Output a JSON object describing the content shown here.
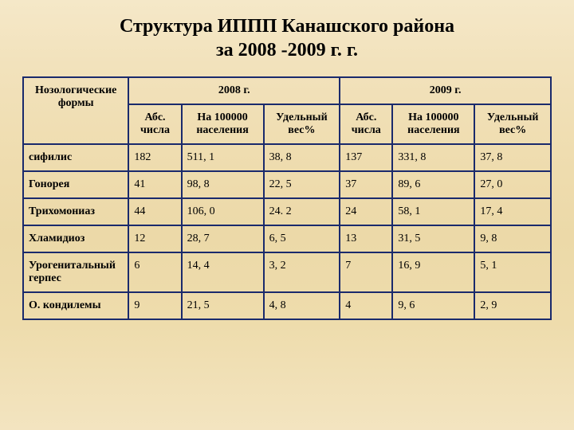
{
  "title_l1": "Структура ИППП Канашского района",
  "title_l2": "за 2008 -2009 г. г.",
  "headers": {
    "forms": "Нозологические формы",
    "y2008": "2008 г.",
    "y2009": "2009 г.",
    "abs": "Абс. числа",
    "per100k": "На 100000 населения",
    "pct": "Удельный вес%"
  },
  "rows": [
    {
      "name": "сифилис",
      "a08": "182",
      "p08": "511, 1",
      "w08": "38, 8",
      "a09": "137",
      "p09": "331, 8",
      "w09": "37, 8"
    },
    {
      "name": "Гонорея",
      "a08": "41",
      "p08": "98, 8",
      "w08": "22, 5",
      "a09": "37",
      "p09": "89, 6",
      "w09": "27, 0"
    },
    {
      "name": "Трихомониаз",
      "a08": "44",
      "p08": "106, 0",
      "w08": "24. 2",
      "a09": "24",
      "p09": "58, 1",
      "w09": "17, 4"
    },
    {
      "name": "Хламидиоз",
      "a08": "12",
      "p08": "28, 7",
      "w08": "6, 5",
      "a09": "13",
      "p09": "31, 5",
      "w09": "9, 8"
    },
    {
      "name": "Урогенитальный герпес",
      "a08": "6",
      "p08": "14, 4",
      "w08": "3, 2",
      "a09": "7",
      "p09": "16, 9",
      "w09": "5, 1"
    },
    {
      "name": "О. кондилемы",
      "a08": "9",
      "p08": "21, 5",
      "w08": "4, 8",
      "a09": "4",
      "p09": "9, 6",
      "w09": "2, 9"
    }
  ],
  "style": {
    "border_color": "#1a2a6c",
    "title_fontsize": 24,
    "cell_fontsize": 14,
    "background_gradient": [
      "#f5e8c8",
      "#efddb0",
      "#f3e4c0"
    ]
  }
}
